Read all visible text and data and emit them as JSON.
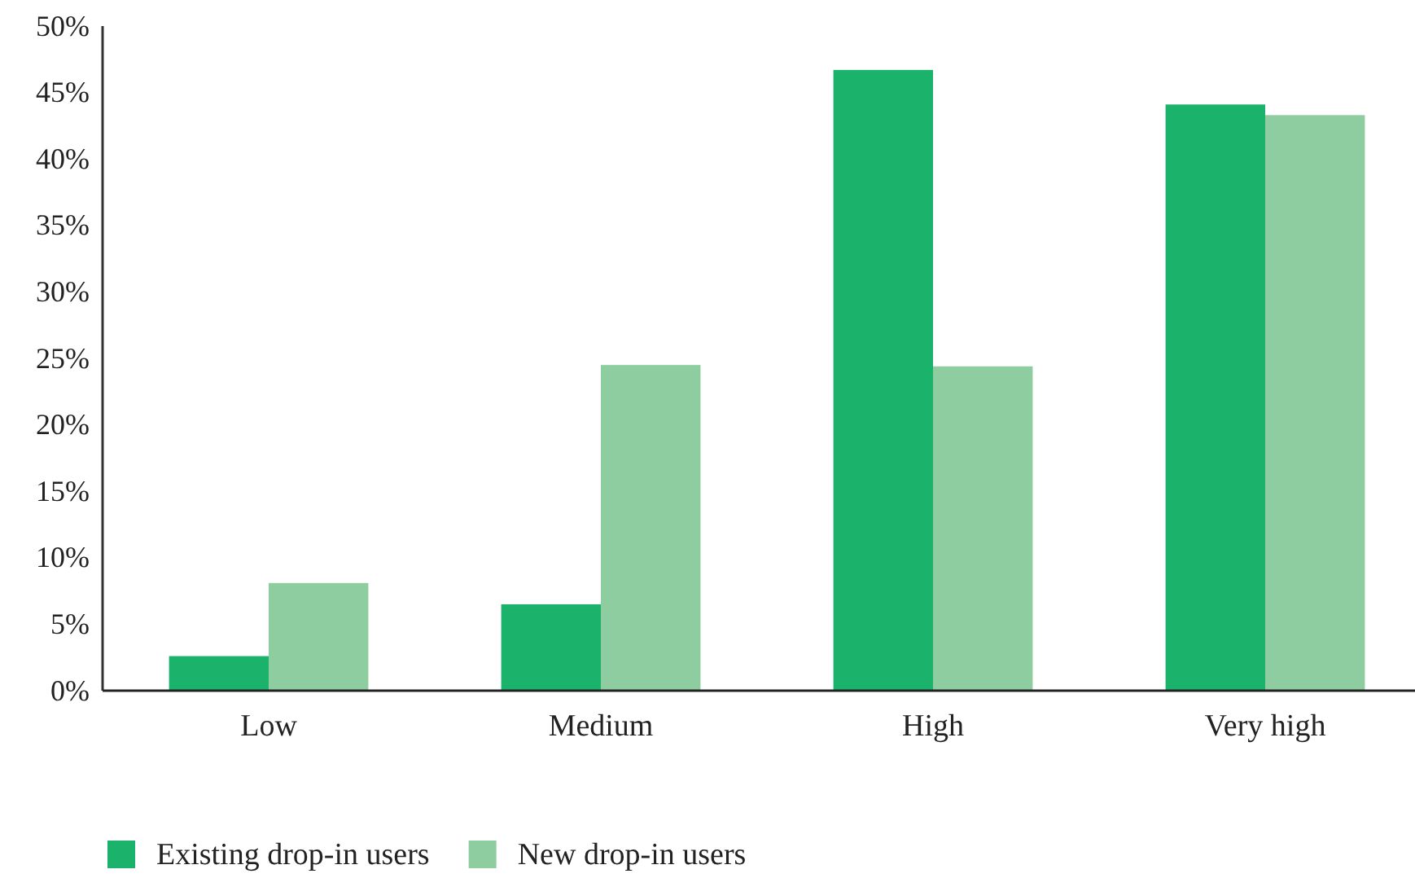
{
  "chart_data": {
    "type": "bar",
    "categories": [
      "Low",
      "Medium",
      "High",
      "Very high"
    ],
    "series": [
      {
        "name": "Existing drop-in users",
        "color": "#1bb36b",
        "values": [
          2.6,
          6.5,
          46.7,
          44.1
        ]
      },
      {
        "name": "New drop-in users",
        "color": "#8dcd9f",
        "values": [
          8.1,
          24.5,
          24.4,
          43.3
        ]
      }
    ],
    "ylim": [
      0,
      50
    ],
    "yticks": [
      {
        "value": 0,
        "label": "0%"
      },
      {
        "value": 5,
        "label": "5%"
      },
      {
        "value": 10,
        "label": "10%"
      },
      {
        "value": 15,
        "label": "15%"
      },
      {
        "value": 20,
        "label": "20%"
      },
      {
        "value": 25,
        "label": "25%"
      },
      {
        "value": 30,
        "label": "30%"
      },
      {
        "value": 35,
        "label": "35%"
      },
      {
        "value": 40,
        "label": "40%"
      },
      {
        "value": 45,
        "label": "45%"
      },
      {
        "value": 50,
        "label": "50%"
      }
    ],
    "grid": false,
    "legend": "bottom"
  }
}
